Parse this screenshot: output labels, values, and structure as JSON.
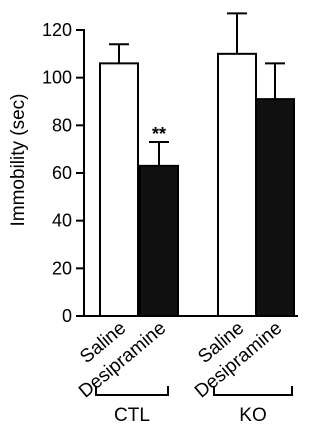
{
  "chart_data": {
    "type": "bar",
    "ylabel": "Immobility (sec)",
    "ylim": [
      0,
      120
    ],
    "yticks": [
      0,
      20,
      40,
      60,
      80,
      100,
      120
    ],
    "grid": false,
    "bars": [
      {
        "label": "Saline",
        "group": "CTL",
        "value": 106,
        "error": 8,
        "fill": "#ffffff",
        "annotation": ""
      },
      {
        "label": "Desipramine",
        "group": "CTL",
        "value": 63,
        "error": 10,
        "fill": "#111111",
        "annotation": "**"
      },
      {
        "label": "Saline",
        "group": "KO",
        "value": 110,
        "error": 17,
        "fill": "#ffffff",
        "annotation": ""
      },
      {
        "label": "Desipramine",
        "group": "KO",
        "value": 91,
        "error": 15,
        "fill": "#111111",
        "annotation": ""
      }
    ],
    "groups": [
      "CTL",
      "KO"
    ]
  }
}
